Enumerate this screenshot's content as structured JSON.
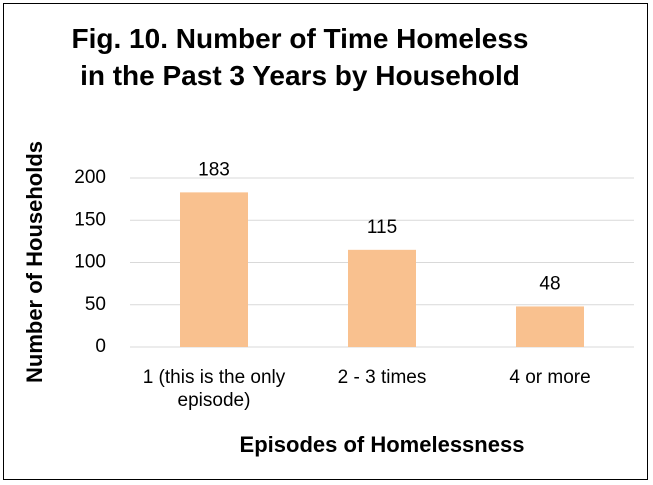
{
  "chart_data": {
    "type": "bar",
    "title": "Fig. 10. Number of Time Homeless in the Past 3 Years by Household",
    "x_label": "Episodes of Homelessness",
    "y_label": "Number of Households",
    "categories": [
      "1 (this is the only episode)",
      "2 - 3 times",
      "4 or more"
    ],
    "values": [
      183,
      115,
      48
    ],
    "color": "#f9c18f",
    "ylim": [
      0,
      200
    ],
    "yticks": [
      0,
      50,
      100,
      150,
      200
    ],
    "grid": true
  }
}
